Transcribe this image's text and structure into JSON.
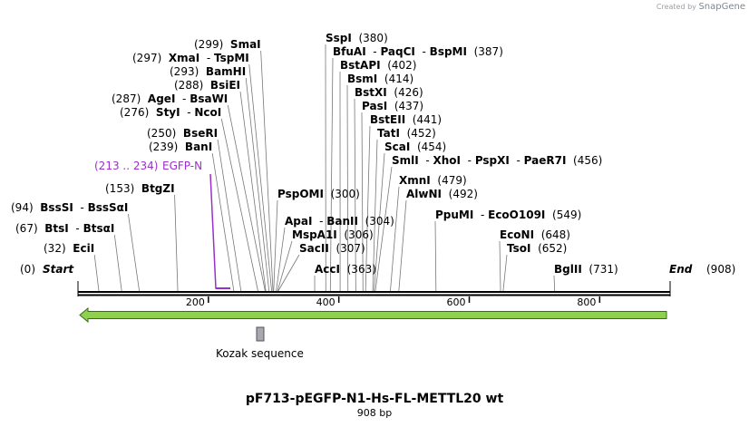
{
  "branding": {
    "prefix": "Created by",
    "name": "SnapGene"
  },
  "title": "pF713-pEGFP-N1-Hs-FL-METTL20 wt",
  "subtitle": "908 bp",
  "ends": {
    "start_label": "Start",
    "start_pos": "(0)",
    "end_label": "End",
    "end_pos": "(908)"
  },
  "axis": {
    "length": 908,
    "ticks": [
      {
        "value": 200,
        "label": "200"
      },
      {
        "value": 400,
        "label": "400"
      },
      {
        "value": 600,
        "label": "600"
      },
      {
        "value": 800,
        "label": "800"
      }
    ]
  },
  "sites": [
    {
      "pos": "(32)",
      "names": [
        "EciI"
      ],
      "bp": 32
    },
    {
      "pos": "(67)",
      "names": [
        "BtsI",
        "BtsαI"
      ],
      "bp": 67
    },
    {
      "pos": "(94)",
      "names": [
        "BssSI",
        "BssSαI"
      ],
      "bp": 94
    },
    {
      "pos": "(153)",
      "names": [
        "BtgZI"
      ],
      "bp": 153
    },
    {
      "pos": "(239)",
      "names": [
        "BanI"
      ],
      "bp": 239
    },
    {
      "pos": "(250)",
      "names": [
        "BseRI"
      ],
      "bp": 250
    },
    {
      "pos": "(276)",
      "names": [
        "StyI",
        "NcoI"
      ],
      "bp": 276
    },
    {
      "pos": "(287)",
      "names": [
        "AgeI",
        "BsaWI"
      ],
      "bp": 287
    },
    {
      "pos": "(288)",
      "names": [
        "BsiEI"
      ],
      "bp": 288
    },
    {
      "pos": "(293)",
      "names": [
        "BamHI"
      ],
      "bp": 293
    },
    {
      "pos": "(297)",
      "names": [
        "XmaI",
        "TspMI"
      ],
      "bp": 297
    },
    {
      "pos": "(299)",
      "names": [
        "SmaI"
      ],
      "bp": 299
    },
    {
      "pos": "(300)",
      "names": [
        "PspOMI"
      ],
      "bp": 300
    },
    {
      "pos": "(304)",
      "names": [
        "ApaI",
        "BanII"
      ],
      "bp": 304
    },
    {
      "pos": "(306)",
      "names": [
        "MspA1I"
      ],
      "bp": 306
    },
    {
      "pos": "(307)",
      "names": [
        "SacII"
      ],
      "bp": 307
    },
    {
      "pos": "(363)",
      "names": [
        "AccI"
      ],
      "bp": 363
    },
    {
      "pos": "(380)",
      "names": [
        "SspI"
      ],
      "bp": 380
    },
    {
      "pos": "(387)",
      "names": [
        "BfuAI",
        "PaqCI",
        "BspMI"
      ],
      "bp": 387
    },
    {
      "pos": "(402)",
      "names": [
        "BstAPI"
      ],
      "bp": 402
    },
    {
      "pos": "(414)",
      "names": [
        "BsmI"
      ],
      "bp": 414
    },
    {
      "pos": "(426)",
      "names": [
        "BstXI"
      ],
      "bp": 426
    },
    {
      "pos": "(437)",
      "names": [
        "PasI"
      ],
      "bp": 437
    },
    {
      "pos": "(441)",
      "names": [
        "BstEII"
      ],
      "bp": 441
    },
    {
      "pos": "(452)",
      "names": [
        "TatI"
      ],
      "bp": 452
    },
    {
      "pos": "(454)",
      "names": [
        "ScaI"
      ],
      "bp": 454
    },
    {
      "pos": "(456)",
      "names": [
        "SmlI",
        "XhoI",
        "PspXI",
        "PaeR7I"
      ],
      "bp": 456
    },
    {
      "pos": "(479)",
      "names": [
        "XmnI"
      ],
      "bp": 479
    },
    {
      "pos": "(492)",
      "names": [
        "AlwNI"
      ],
      "bp": 492
    },
    {
      "pos": "(549)",
      "names": [
        "PpuMI",
        "EcoO109I"
      ],
      "bp": 549
    },
    {
      "pos": "(648)",
      "names": [
        "EcoNI"
      ],
      "bp": 648
    },
    {
      "pos": "(652)",
      "names": [
        "TsoI"
      ],
      "bp": 652
    },
    {
      "pos": "(731)",
      "names": [
        "BglII"
      ],
      "bp": 731
    }
  ],
  "primer": {
    "range": "(213 .. 234)",
    "name": "EGFP-N",
    "start_bp": 213,
    "end_bp": 234,
    "color": "#9b2fc9"
  },
  "feature": {
    "name": "Kozak sequence",
    "color": "#a8a8b0"
  },
  "orf": {
    "color": "#8fd14f",
    "direction": "reverse"
  }
}
